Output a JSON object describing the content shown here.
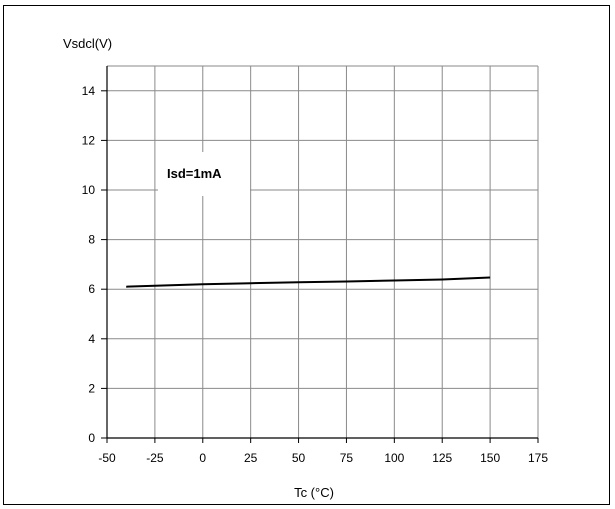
{
  "chart_data": {
    "type": "line",
    "ylabel": "Vsdcl(V)",
    "xlabel": "Tc (°C)",
    "annotation": "Isd=1mA",
    "xlim": [
      -50,
      175
    ],
    "ylim": [
      0,
      15
    ],
    "x_ticks": [
      -50,
      -25,
      0,
      25,
      50,
      75,
      100,
      125,
      150,
      175
    ],
    "y_ticks": [
      0,
      2,
      4,
      6,
      8,
      10,
      12,
      14
    ],
    "grid": true,
    "series": [
      {
        "color": "#000000",
        "x": [
          -40,
          -25,
          0,
          25,
          50,
          75,
          100,
          125,
          150
        ],
        "y": [
          6.1,
          6.14,
          6.2,
          6.24,
          6.28,
          6.31,
          6.35,
          6.39,
          6.47
        ]
      }
    ]
  }
}
